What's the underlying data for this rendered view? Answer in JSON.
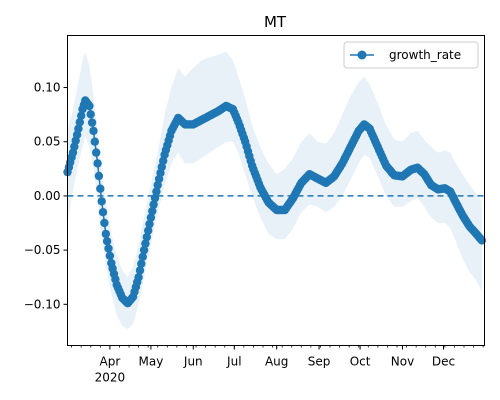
{
  "chart_data": {
    "type": "line",
    "title": "MT",
    "xlabel": "",
    "ylabel": "",
    "x_range": [
      "2020-03-01",
      "2020-12-31"
    ],
    "ylim": [
      -0.138,
      0.148
    ],
    "y_ticks": [
      {
        "value": 0.1,
        "label": "0.10"
      },
      {
        "value": 0.05,
        "label": "0.05"
      },
      {
        "value": 0.0,
        "label": "0.00"
      },
      {
        "value": -0.05,
        "label": "−0.05"
      },
      {
        "value": -0.1,
        "label": "−0.10"
      }
    ],
    "x_ticks_major": [
      {
        "date": "2020-04-01",
        "label": "Apr"
      },
      {
        "date": "2020-05-01",
        "label": "May"
      },
      {
        "date": "2020-06-01",
        "label": "Jun"
      },
      {
        "date": "2020-07-01",
        "label": "Jul"
      },
      {
        "date": "2020-08-01",
        "label": "Aug"
      },
      {
        "date": "2020-09-01",
        "label": "Sep"
      },
      {
        "date": "2020-10-01",
        "label": "Oct"
      },
      {
        "date": "2020-11-01",
        "label": "Nov"
      },
      {
        "date": "2020-12-01",
        "label": "Dec"
      }
    ],
    "x_year_label": {
      "date": "2020-04-01",
      "label": "2020"
    },
    "reference_line": {
      "y": 0.0,
      "style": "dashed",
      "color": "#1f77b4"
    },
    "grid": false,
    "legend_position": "top-right",
    "series": [
      {
        "name": "growth_rate",
        "color": "#1f77b4",
        "band_color": "#1f77b4",
        "marker": "circle",
        "points": [
          {
            "x": "2020-03-01",
            "y": 0.022,
            "lo": -0.025,
            "hi": 0.06
          },
          {
            "x": "2020-03-05",
            "y": 0.04,
            "lo": 0.005,
            "hi": 0.08
          },
          {
            "x": "2020-03-09",
            "y": 0.062,
            "lo": 0.03,
            "hi": 0.105
          },
          {
            "x": "2020-03-12",
            "y": 0.08,
            "lo": 0.045,
            "hi": 0.125
          },
          {
            "x": "2020-03-14",
            "y": 0.088,
            "lo": 0.055,
            "hi": 0.133
          },
          {
            "x": "2020-03-17",
            "y": 0.083,
            "lo": 0.045,
            "hi": 0.12
          },
          {
            "x": "2020-03-20",
            "y": 0.06,
            "lo": 0.025,
            "hi": 0.092
          },
          {
            "x": "2020-03-23",
            "y": 0.03,
            "lo": -0.005,
            "hi": 0.06
          },
          {
            "x": "2020-03-26",
            "y": -0.005,
            "lo": -0.035,
            "hi": 0.025
          },
          {
            "x": "2020-03-29",
            "y": -0.035,
            "lo": -0.065,
            "hi": -0.005
          },
          {
            "x": "2020-04-02",
            "y": -0.062,
            "lo": -0.09,
            "hi": -0.035
          },
          {
            "x": "2020-04-06",
            "y": -0.082,
            "lo": -0.11,
            "hi": -0.055
          },
          {
            "x": "2020-04-10",
            "y": -0.094,
            "lo": -0.12,
            "hi": -0.068
          },
          {
            "x": "2020-04-14",
            "y": -0.099,
            "lo": -0.123,
            "hi": -0.075
          },
          {
            "x": "2020-04-18",
            "y": -0.093,
            "lo": -0.118,
            "hi": -0.065
          },
          {
            "x": "2020-04-22",
            "y": -0.075,
            "lo": -0.1,
            "hi": -0.045
          },
          {
            "x": "2020-04-26",
            "y": -0.05,
            "lo": -0.075,
            "hi": -0.02
          },
          {
            "x": "2020-05-01",
            "y": -0.02,
            "lo": -0.045,
            "hi": 0.01
          },
          {
            "x": "2020-05-06",
            "y": 0.01,
            "lo": -0.015,
            "hi": 0.04
          },
          {
            "x": "2020-05-11",
            "y": 0.038,
            "lo": 0.01,
            "hi": 0.075
          },
          {
            "x": "2020-05-16",
            "y": 0.06,
            "lo": 0.03,
            "hi": 0.1
          },
          {
            "x": "2020-05-21",
            "y": 0.072,
            "lo": 0.04,
            "hi": 0.118
          },
          {
            "x": "2020-05-26",
            "y": 0.066,
            "lo": 0.03,
            "hi": 0.11
          },
          {
            "x": "2020-06-01",
            "y": 0.066,
            "lo": 0.03,
            "hi": 0.118
          },
          {
            "x": "2020-06-07",
            "y": 0.07,
            "lo": 0.035,
            "hi": 0.125
          },
          {
            "x": "2020-06-13",
            "y": 0.074,
            "lo": 0.04,
            "hi": 0.128
          },
          {
            "x": "2020-06-19",
            "y": 0.078,
            "lo": 0.045,
            "hi": 0.13
          },
          {
            "x": "2020-06-25",
            "y": 0.083,
            "lo": 0.05,
            "hi": 0.133
          },
          {
            "x": "2020-06-30",
            "y": 0.08,
            "lo": 0.05,
            "hi": 0.125
          },
          {
            "x": "2020-07-04",
            "y": 0.068,
            "lo": 0.04,
            "hi": 0.11
          },
          {
            "x": "2020-07-09",
            "y": 0.05,
            "lo": 0.02,
            "hi": 0.09
          },
          {
            "x": "2020-07-14",
            "y": 0.028,
            "lo": 0.0,
            "hi": 0.065
          },
          {
            "x": "2020-07-20",
            "y": 0.008,
            "lo": -0.02,
            "hi": 0.045
          },
          {
            "x": "2020-07-26",
            "y": -0.006,
            "lo": -0.035,
            "hi": 0.03
          },
          {
            "x": "2020-08-01",
            "y": -0.013,
            "lo": -0.04,
            "hi": 0.02
          },
          {
            "x": "2020-08-07",
            "y": -0.013,
            "lo": -0.04,
            "hi": 0.025
          },
          {
            "x": "2020-08-13",
            "y": -0.002,
            "lo": -0.03,
            "hi": 0.035
          },
          {
            "x": "2020-08-19",
            "y": 0.012,
            "lo": -0.015,
            "hi": 0.05
          },
          {
            "x": "2020-08-25",
            "y": 0.02,
            "lo": -0.008,
            "hi": 0.058
          },
          {
            "x": "2020-08-31",
            "y": 0.016,
            "lo": -0.01,
            "hi": 0.05
          },
          {
            "x": "2020-09-06",
            "y": 0.012,
            "lo": -0.015,
            "hi": 0.048
          },
          {
            "x": "2020-09-12",
            "y": 0.018,
            "lo": -0.01,
            "hi": 0.058
          },
          {
            "x": "2020-09-18",
            "y": 0.03,
            "lo": 0.0,
            "hi": 0.075
          },
          {
            "x": "2020-09-24",
            "y": 0.045,
            "lo": 0.015,
            "hi": 0.092
          },
          {
            "x": "2020-09-30",
            "y": 0.06,
            "lo": 0.03,
            "hi": 0.105
          },
          {
            "x": "2020-10-04",
            "y": 0.066,
            "lo": 0.038,
            "hi": 0.11
          },
          {
            "x": "2020-10-08",
            "y": 0.062,
            "lo": 0.035,
            "hi": 0.103
          },
          {
            "x": "2020-10-14",
            "y": 0.045,
            "lo": 0.018,
            "hi": 0.085
          },
          {
            "x": "2020-10-20",
            "y": 0.028,
            "lo": 0.0,
            "hi": 0.065
          },
          {
            "x": "2020-10-26",
            "y": 0.019,
            "lo": -0.01,
            "hi": 0.052
          },
          {
            "x": "2020-11-01",
            "y": 0.018,
            "lo": -0.01,
            "hi": 0.05
          },
          {
            "x": "2020-11-07",
            "y": 0.024,
            "lo": -0.005,
            "hi": 0.058
          },
          {
            "x": "2020-11-12",
            "y": 0.026,
            "lo": -0.002,
            "hi": 0.06
          },
          {
            "x": "2020-11-17",
            "y": 0.02,
            "lo": -0.01,
            "hi": 0.052
          },
          {
            "x": "2020-11-22",
            "y": 0.01,
            "lo": -0.02,
            "hi": 0.045
          },
          {
            "x": "2020-11-27",
            "y": 0.006,
            "lo": -0.025,
            "hi": 0.04
          },
          {
            "x": "2020-12-02",
            "y": 0.007,
            "lo": -0.025,
            "hi": 0.042
          },
          {
            "x": "2020-12-06",
            "y": 0.004,
            "lo": -0.03,
            "hi": 0.04
          },
          {
            "x": "2020-12-10",
            "y": -0.006,
            "lo": -0.042,
            "hi": 0.03
          },
          {
            "x": "2020-12-15",
            "y": -0.018,
            "lo": -0.058,
            "hi": 0.02
          },
          {
            "x": "2020-12-20",
            "y": -0.028,
            "lo": -0.07,
            "hi": 0.01
          },
          {
            "x": "2020-12-25",
            "y": -0.035,
            "lo": -0.078,
            "hi": 0.002
          },
          {
            "x": "2020-12-29",
            "y": -0.041,
            "lo": -0.088,
            "hi": -0.005
          }
        ]
      }
    ]
  }
}
